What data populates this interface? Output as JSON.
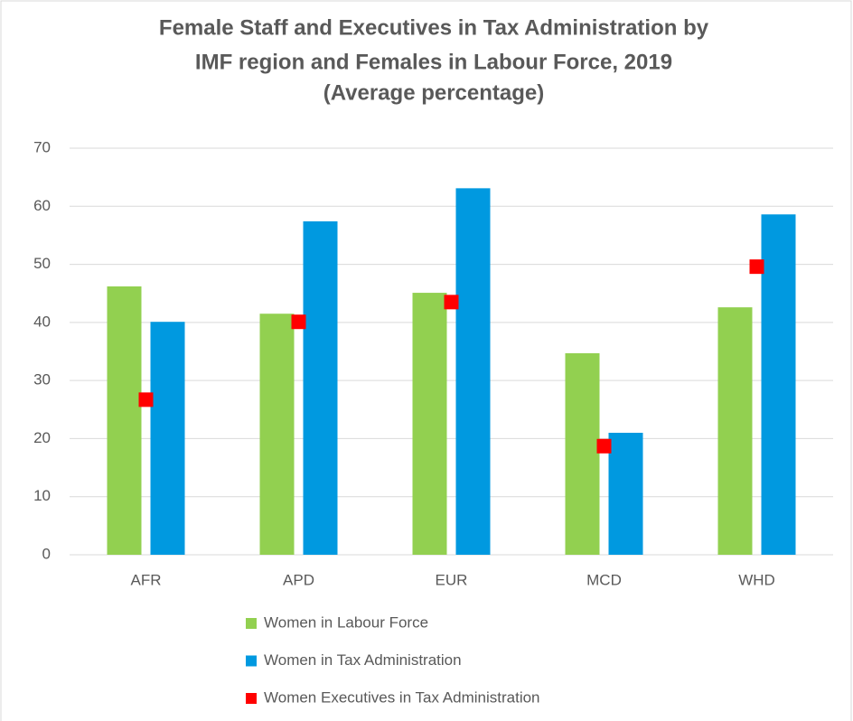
{
  "chart_data": {
    "type": "bar",
    "title": [
      "Female Staff and Executives in Tax Administration by",
      "IMF region and Females in Labour Force, 2019",
      "(Average percentage)"
    ],
    "categories": [
      "AFR",
      "APD",
      "EUR",
      "MCD",
      "WHD"
    ],
    "series": [
      {
        "name": "Women in Labour Force",
        "type": "bar",
        "color": "#92d050",
        "values": [
          46.2,
          41.5,
          45.1,
          34.7,
          42.6
        ]
      },
      {
        "name": "Women in Tax Administration",
        "type": "bar",
        "color": "#0099e0",
        "values": [
          40.1,
          57.4,
          63.1,
          21.0,
          58.6
        ]
      },
      {
        "name": "Women Executives in Tax Administration",
        "type": "marker",
        "color": "#ff0000",
        "values": [
          26.7,
          40.1,
          43.5,
          18.7,
          49.6
        ]
      }
    ],
    "ylim": [
      0,
      70
    ],
    "yticks": [
      0,
      10,
      20,
      30,
      40,
      50,
      60,
      70
    ],
    "grid": true,
    "legend": "bottom"
  }
}
